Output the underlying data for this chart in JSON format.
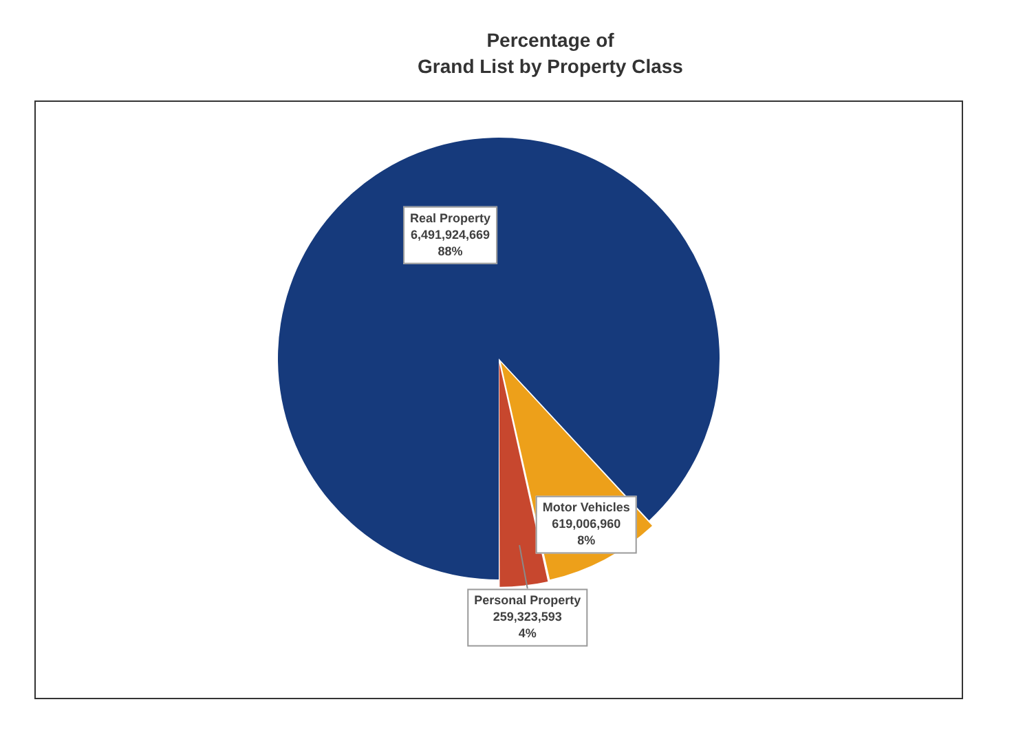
{
  "chart_data": {
    "type": "pie",
    "title": "Percentage of\nGrand List by Property Class",
    "categories": [
      "Real Property",
      "Motor Vehicles",
      "Personal Property"
    ],
    "values": [
      6491924669,
      619006960,
      259323593
    ],
    "colors": [
      "#163a7c",
      "#eda01a",
      "#c7472e"
    ],
    "value_labels": [
      "6,491,924,669\n88%",
      "619,006,960\n8%",
      "259,323,593\n4%"
    ]
  }
}
